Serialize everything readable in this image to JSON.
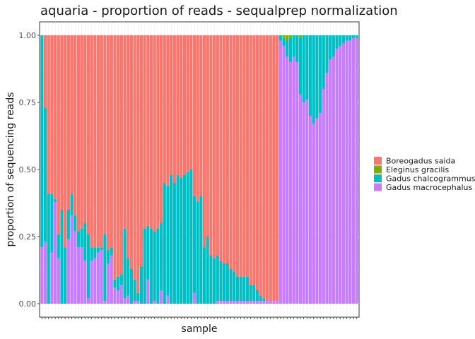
{
  "chart_data": {
    "type": "bar",
    "stacked": true,
    "title": "aquaria - proportion of reads - sequalprep normalization",
    "xlabel": "sample",
    "ylabel": "proportion of sequencing reads",
    "ylim": [
      0,
      1
    ],
    "yticks": [
      0,
      0.25,
      0.5,
      0.75,
      1
    ],
    "ytick_labels": [
      "0.00",
      "0.25",
      "0.50",
      "0.75",
      "1.00"
    ],
    "n_samples": 96,
    "grid": true,
    "legend_position": "right",
    "series": [
      {
        "name": "Boreogadus saida",
        "color": "#F8766D"
      },
      {
        "name": "Eleginus gracilis",
        "color": "#7CAE00"
      },
      {
        "name": "Gadus chalcogrammus",
        "color": "#00BFC4"
      },
      {
        "name": "Gadus macrocephalus",
        "color": "#C77CFF"
      }
    ],
    "samples": [
      [
        0,
        0,
        0.79,
        0.21
      ],
      [
        0.27,
        0,
        0.5,
        0.23
      ],
      [
        0.59,
        0,
        0.41,
        0
      ],
      [
        0.59,
        0,
        0.22,
        0.19
      ],
      [
        0.61,
        0,
        0.01,
        0.38
      ],
      [
        0.74,
        0,
        0.09,
        0.17
      ],
      [
        0.65,
        0,
        0.35,
        0
      ],
      [
        0.79,
        0,
        0.21,
        0
      ],
      [
        0.65,
        0,
        0.11,
        0.24
      ],
      [
        0.59,
        0,
        0.08,
        0.33
      ],
      [
        0.67,
        0,
        0.06,
        0.27
      ],
      [
        0.73,
        0,
        0.06,
        0.21
      ],
      [
        0.72,
        0,
        0.07,
        0.21
      ],
      [
        0.7,
        0,
        0.14,
        0.16
      ],
      [
        0.74,
        0,
        0.24,
        0.02
      ],
      [
        0.79,
        0,
        0.05,
        0.16
      ],
      [
        0.79,
        0,
        0.04,
        0.17
      ],
      [
        0.79,
        0,
        0.02,
        0.19
      ],
      [
        0.79,
        0,
        0.01,
        0.2
      ],
      [
        0.74,
        0,
        0.25,
        0.01
      ],
      [
        0.8,
        0,
        0.05,
        0.15
      ],
      [
        0.79,
        0,
        0.03,
        0.18
      ],
      [
        0.91,
        0,
        0.03,
        0.06
      ],
      [
        0.9,
        0,
        0.05,
        0.05
      ],
      [
        0.89,
        0,
        0.04,
        0.07
      ],
      [
        0.72,
        0,
        0.26,
        0.02
      ],
      [
        0.83,
        0,
        0.14,
        0.03
      ],
      [
        0.87,
        0,
        0.13,
        0
      ],
      [
        0.91,
        0,
        0.08,
        0.01
      ],
      [
        0.96,
        0,
        0.03,
        0.01
      ],
      [
        0.86,
        0,
        0.14,
        0
      ],
      [
        0.72,
        0,
        0.28,
        0
      ],
      [
        0.71,
        0,
        0.2,
        0.09
      ],
      [
        0.72,
        0,
        0.28,
        0
      ],
      [
        0.73,
        0,
        0.26,
        0.01
      ],
      [
        0.72,
        0,
        0.28,
        0
      ],
      [
        0.7,
        0,
        0.25,
        0.05
      ],
      [
        0.55,
        0,
        0.45,
        0
      ],
      [
        0.56,
        0,
        0.41,
        0.03
      ],
      [
        0.52,
        0,
        0.48,
        0
      ],
      [
        0.55,
        0,
        0.45,
        0
      ],
      [
        0.52,
        0,
        0.48,
        0
      ],
      [
        0.53,
        0,
        0.47,
        0
      ],
      [
        0.52,
        0,
        0.48,
        0
      ],
      [
        0.51,
        0,
        0.49,
        0
      ],
      [
        0.5,
        0,
        0.5,
        0
      ],
      [
        0.6,
        0,
        0.36,
        0.04
      ],
      [
        0.62,
        0,
        0.38,
        0
      ],
      [
        0.6,
        0,
        0.4,
        0
      ],
      [
        0.79,
        0,
        0.21,
        0
      ],
      [
        0.75,
        0,
        0.25,
        0
      ],
      [
        0.82,
        0,
        0.18,
        0
      ],
      [
        0.83,
        0,
        0.17,
        0
      ],
      [
        0.82,
        0,
        0.17,
        0.01
      ],
      [
        0.84,
        0,
        0.15,
        0.01
      ],
      [
        0.85,
        0,
        0.14,
        0.01
      ],
      [
        0.85,
        0,
        0.14,
        0.01
      ],
      [
        0.87,
        0,
        0.12,
        0.01
      ],
      [
        0.88,
        0,
        0.11,
        0.01
      ],
      [
        0.9,
        0,
        0.09,
        0.01
      ],
      [
        0.9,
        0,
        0.09,
        0.01
      ],
      [
        0.9,
        0,
        0.09,
        0.01
      ],
      [
        0.9,
        0,
        0.09,
        0.01
      ],
      [
        0.93,
        0,
        0.06,
        0.01
      ],
      [
        0.93,
        0,
        0.06,
        0.01
      ],
      [
        0.95,
        0,
        0.04,
        0.01
      ],
      [
        0.97,
        0,
        0.02,
        0.01
      ],
      [
        0.98,
        0,
        0.01,
        0.01
      ],
      [
        0.99,
        0,
        0,
        0.01
      ],
      [
        0.99,
        0,
        0,
        0.01
      ],
      [
        0.99,
        0,
        0,
        0.01
      ],
      [
        0.99,
        0,
        0,
        0.01
      ],
      [
        0,
        0,
        0.02,
        0.98
      ],
      [
        0,
        0.01,
        0.03,
        0.96
      ],
      [
        0,
        0.02,
        0.06,
        0.92
      ],
      [
        0,
        0.01,
        0.09,
        0.9
      ],
      [
        0,
        0,
        0.08,
        0.92
      ],
      [
        0,
        0,
        0.1,
        0.9
      ],
      [
        0,
        0.01,
        0.21,
        0.78
      ],
      [
        0,
        0,
        0.25,
        0.75
      ],
      [
        0,
        0,
        0.24,
        0.76
      ],
      [
        0,
        0,
        0.3,
        0.7
      ],
      [
        0,
        0,
        0.33,
        0.67
      ],
      [
        0,
        0,
        0.31,
        0.69
      ],
      [
        0,
        0,
        0.29,
        0.71
      ],
      [
        0,
        0,
        0.2,
        0.8
      ],
      [
        0,
        0,
        0.14,
        0.86
      ],
      [
        0,
        0,
        0.09,
        0.91
      ],
      [
        0,
        0,
        0.08,
        0.92
      ],
      [
        0,
        0,
        0.05,
        0.95
      ],
      [
        0,
        0,
        0.04,
        0.96
      ],
      [
        0,
        0,
        0.03,
        0.97
      ],
      [
        0,
        0,
        0.02,
        0.98
      ],
      [
        0,
        0,
        0.02,
        0.98
      ],
      [
        0,
        0,
        0.01,
        0.99
      ],
      [
        0,
        0,
        0.01,
        0.99
      ]
    ]
  }
}
